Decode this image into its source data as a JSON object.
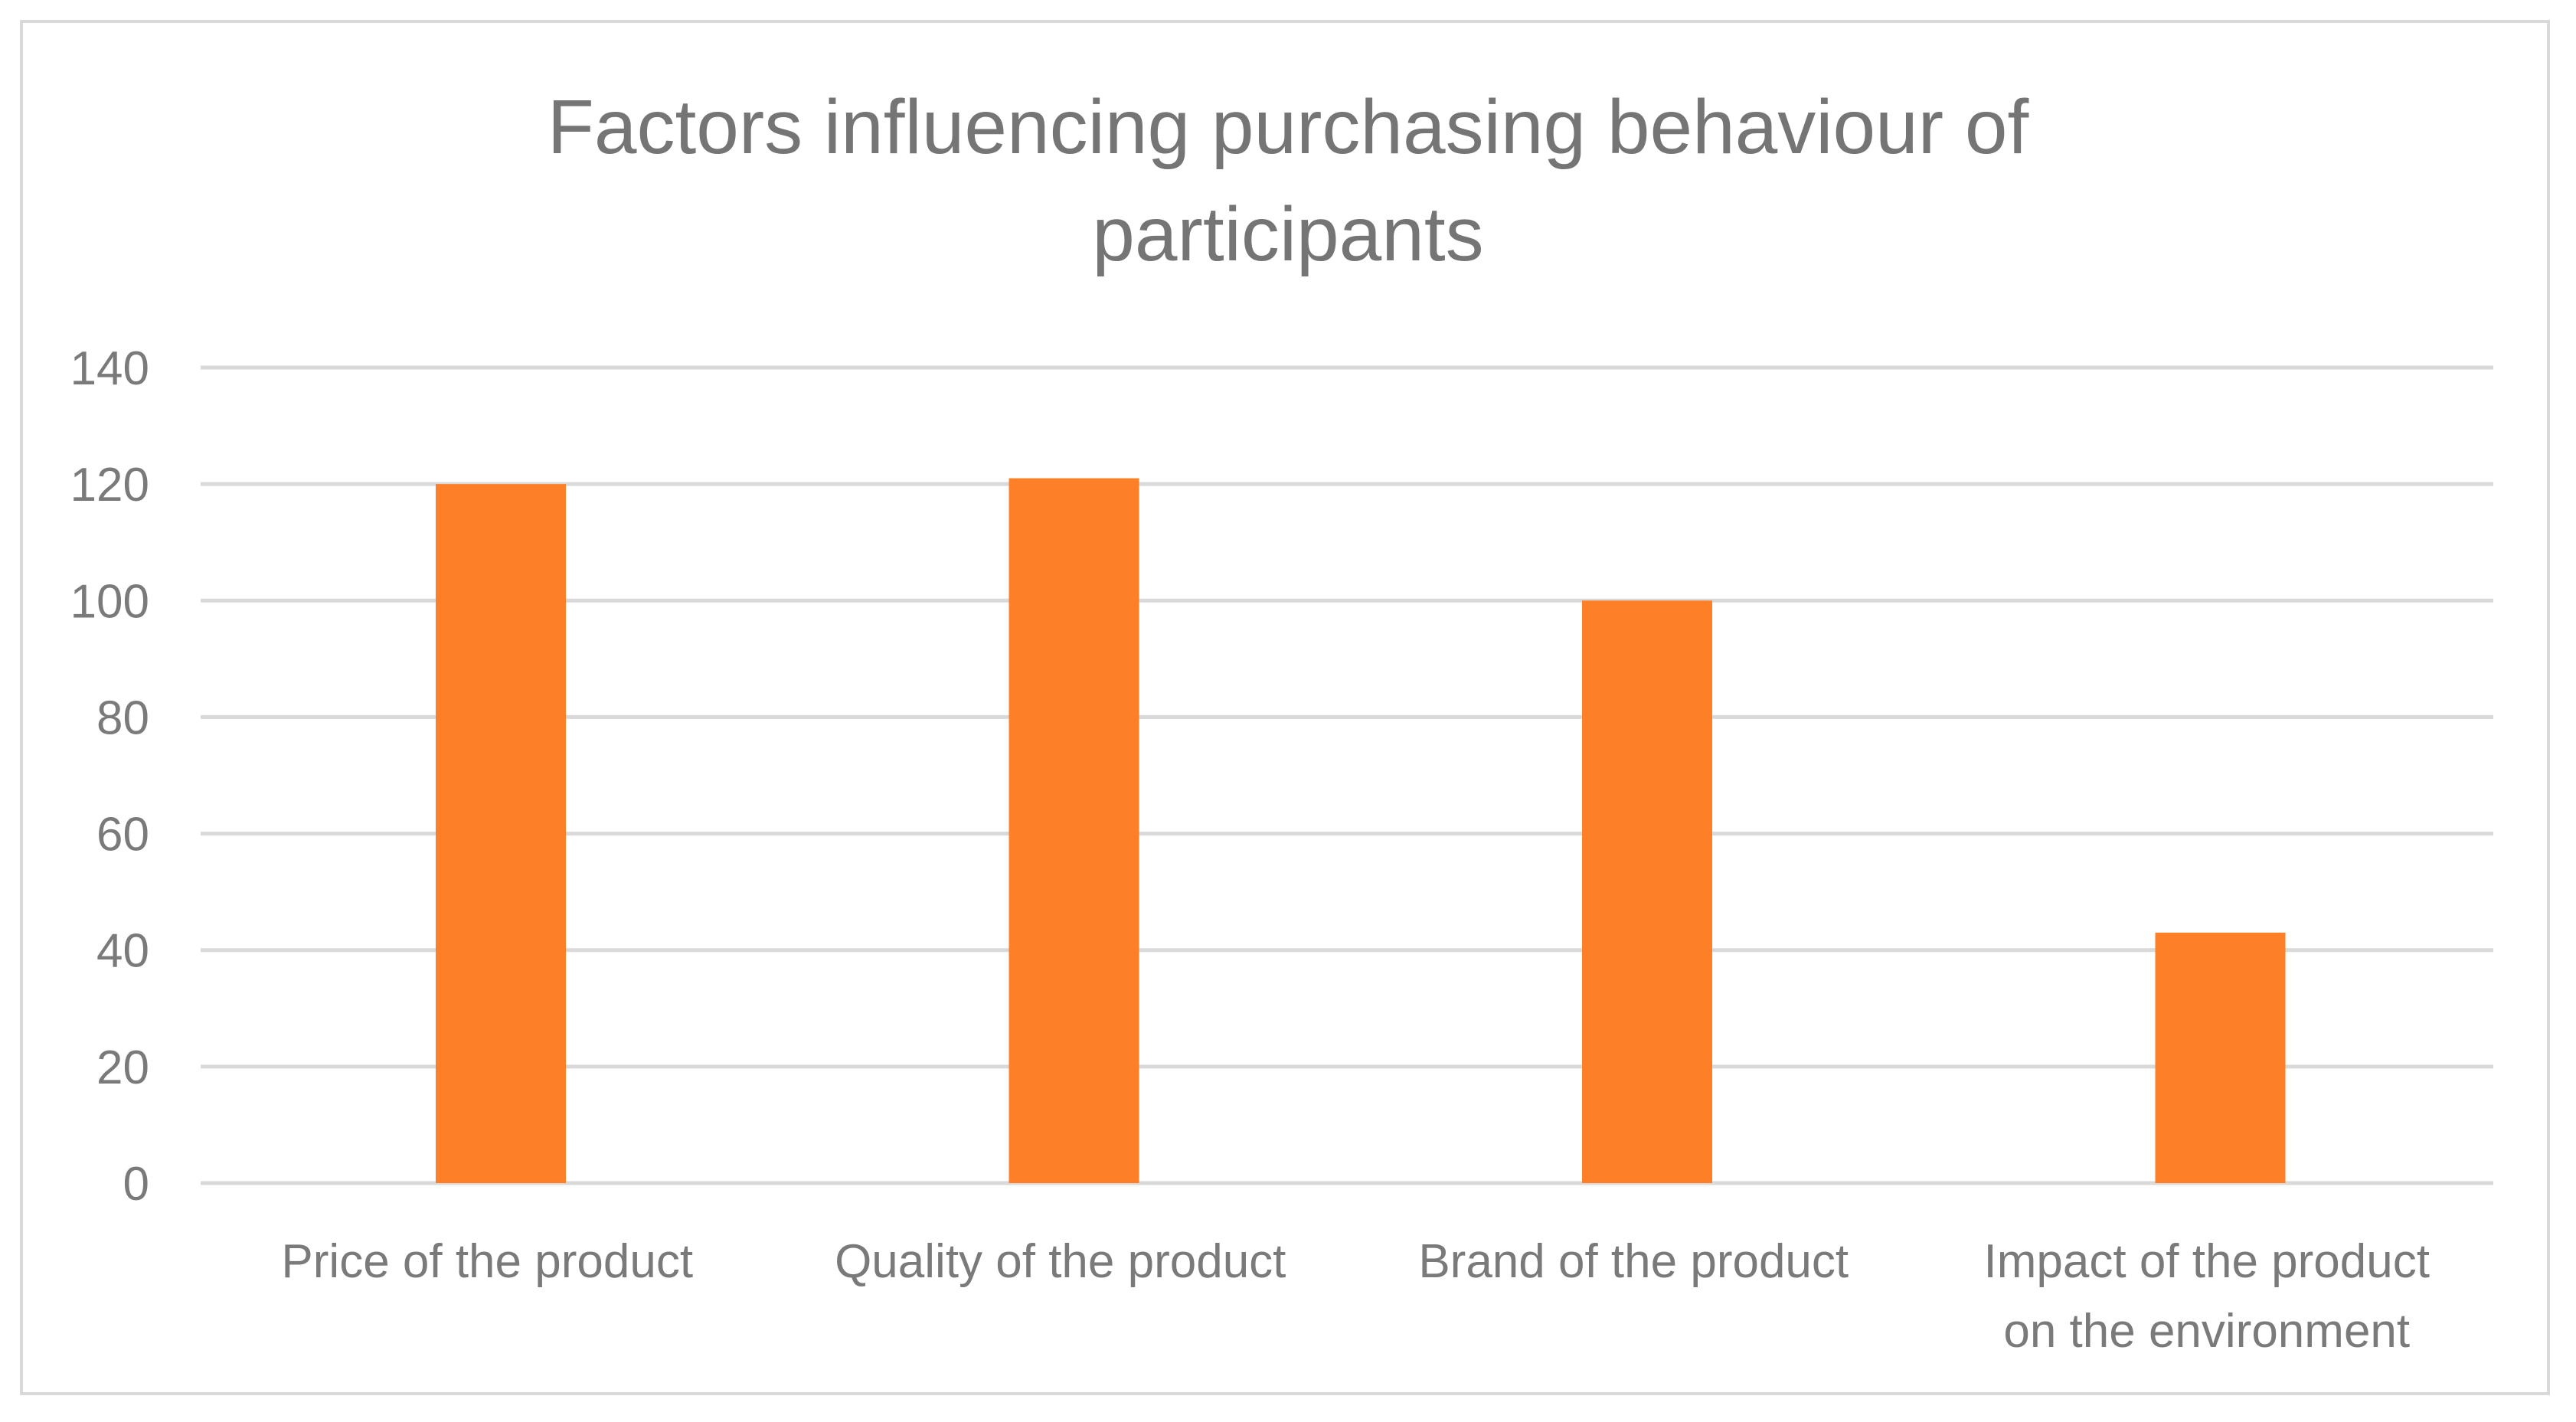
{
  "chart_data": {
    "type": "bar",
    "title": "Factors influencing purchasing behaviour of participants",
    "title_lines": [
      "Factors influencing purchasing behaviour of",
      "participants"
    ],
    "categories": [
      "Price of the product",
      "Quality of the product",
      "Brand of the product",
      "Impact of the product on the environment"
    ],
    "category_lines": [
      [
        "Price of the product"
      ],
      [
        "Quality of the product"
      ],
      [
        "Brand of the product"
      ],
      [
        "Impact of the product",
        "on the environment"
      ]
    ],
    "values": [
      120,
      121,
      100,
      43
    ],
    "xlabel": "",
    "ylabel": "",
    "ylim": [
      0,
      140
    ],
    "yticks": [
      0,
      20,
      40,
      60,
      80,
      100,
      120,
      140
    ],
    "grid": true,
    "legend": "none",
    "bar_color": "#fd7f28",
    "grid_color": "#d9d9d9",
    "text_color": "#7a7a7a"
  }
}
